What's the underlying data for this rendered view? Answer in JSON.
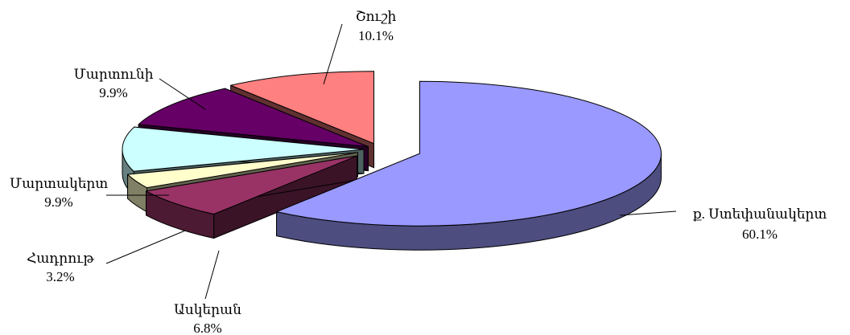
{
  "chart_data": {
    "type": "pie",
    "style": "3d-exploded",
    "title": "",
    "slices": [
      {
        "name": "ք. Ստեփանակերտ",
        "value": 60.1,
        "value_label": "60.1%",
        "color": "#9999FF"
      },
      {
        "name": "Ասկերան",
        "value": 6.8,
        "value_label": "6.8%",
        "color": "#993366"
      },
      {
        "name": "Հադրութ",
        "value": 3.2,
        "value_label": "3.2%",
        "color": "#FFFFCC"
      },
      {
        "name": "Մարտակերտ",
        "value": 9.9,
        "value_label": "9.9%",
        "color": "#CCFFFF"
      },
      {
        "name": "Մարտունի",
        "value": 9.9,
        "value_label": "9.9%",
        "color": "#660066"
      },
      {
        "name": "Շուշի",
        "value": 10.1,
        "value_label": "10.1%",
        "color": "#FF8080"
      }
    ]
  }
}
